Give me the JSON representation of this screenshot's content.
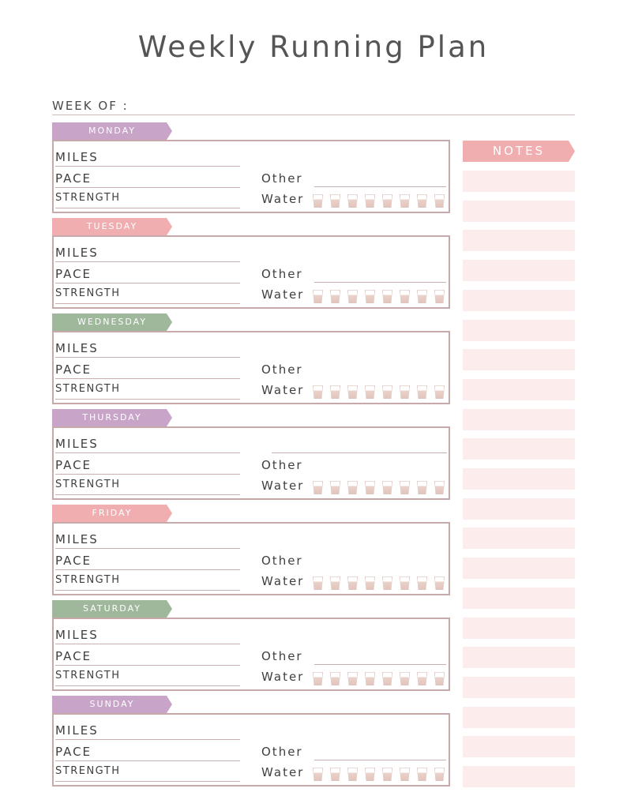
{
  "title": "Weekly Running Plan",
  "week_of_label": "WEEK OF :",
  "field_labels": {
    "miles": "MILES",
    "pace": "PACE",
    "strength": "STRENGTH",
    "other": "Other",
    "water": "Water"
  },
  "days": [
    {
      "name": "MONDAY",
      "color": "#c8a4c9"
    },
    {
      "name": "TUESDAY",
      "color": "#f1aeb0"
    },
    {
      "name": "WEDNESDAY",
      "color": "#9fb89c"
    },
    {
      "name": "THURSDAY",
      "color": "#c8a4c9"
    },
    {
      "name": "FRIDAY",
      "color": "#f1aeb0"
    },
    {
      "name": "SATURDAY",
      "color": "#9fb89c"
    },
    {
      "name": "SUNDAY",
      "color": "#c8a4c9"
    }
  ],
  "water_glasses_per_day": 8,
  "notes": {
    "label": "NOTES",
    "line_count": 21,
    "color": "#f1aeb0",
    "line_color": "#fcedec"
  },
  "colors": {
    "border": "#c8a9aa",
    "text": "#4a4a4a"
  }
}
